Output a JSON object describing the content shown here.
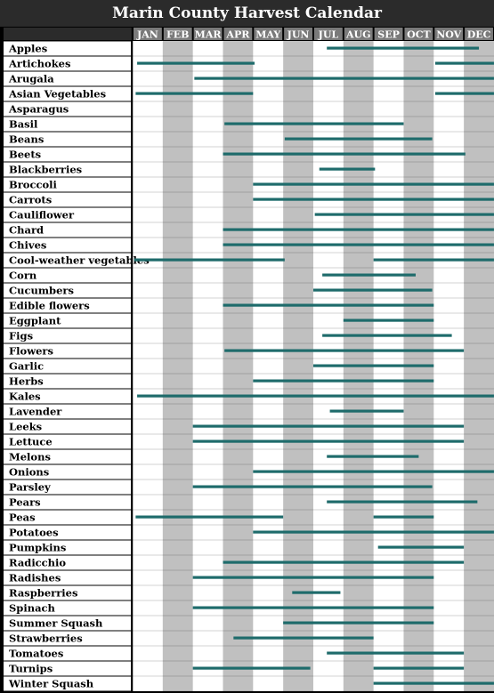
{
  "chart_data": {
    "type": "bar",
    "title": "Marin County Harvest Calendar",
    "xlabel": "",
    "ylabel": "",
    "x_unit": "month (1 = start of JAN, 13 = end of DEC)",
    "xlim": [
      1,
      13
    ],
    "months": [
      "JAN",
      "FEB",
      "MAR",
      "APR",
      "MAY",
      "JUN",
      "JUL",
      "AUG",
      "SEP",
      "OCT",
      "NOV",
      "DEC"
    ],
    "colors": {
      "bar": "#1e6b6b",
      "column_shade": "#c0c0c0",
      "header_bg": "#2b2b2b",
      "month_header_bg": "#7a7a7a"
    },
    "items": [
      {
        "name": "Apples",
        "ranges": [
          [
            7.45,
            12.5
          ]
        ]
      },
      {
        "name": "Artichokes",
        "ranges": [
          [
            1.15,
            5.05
          ],
          [
            11.05,
            13
          ]
        ]
      },
      {
        "name": "Arugala",
        "ranges": [
          [
            3.05,
            13
          ]
        ]
      },
      {
        "name": "Asian Vegetables",
        "ranges": [
          [
            1.1,
            5.0
          ],
          [
            11.05,
            13
          ]
        ]
      },
      {
        "name": "Asparagus",
        "ranges": []
      },
      {
        "name": "Basil",
        "ranges": [
          [
            4.05,
            10.0
          ]
        ]
      },
      {
        "name": "Beans",
        "ranges": [
          [
            6.05,
            10.95
          ]
        ]
      },
      {
        "name": "Beets",
        "ranges": [
          [
            4.0,
            12.05
          ]
        ]
      },
      {
        "name": "Blackberries",
        "ranges": [
          [
            7.2,
            9.05
          ]
        ]
      },
      {
        "name": "Broccoli",
        "ranges": [
          [
            5.0,
            13
          ]
        ]
      },
      {
        "name": "Carrots",
        "ranges": [
          [
            5.0,
            13
          ]
        ]
      },
      {
        "name": "Cauliflower",
        "ranges": [
          [
            7.05,
            13
          ]
        ]
      },
      {
        "name": "Chard",
        "ranges": [
          [
            4.0,
            13
          ]
        ]
      },
      {
        "name": "Chives",
        "ranges": [
          [
            4.0,
            13
          ]
        ]
      },
      {
        "name": "Cool-weather vegetables",
        "ranges": [
          [
            1.05,
            6.05
          ],
          [
            9.0,
            13
          ]
        ]
      },
      {
        "name": "Corn",
        "ranges": [
          [
            7.3,
            10.4
          ]
        ]
      },
      {
        "name": "Cucumbers",
        "ranges": [
          [
            7.0,
            10.95
          ]
        ]
      },
      {
        "name": "Edible flowers",
        "ranges": [
          [
            4.0,
            11.0
          ]
        ]
      },
      {
        "name": "Eggplant",
        "ranges": [
          [
            8.0,
            11.0
          ]
        ]
      },
      {
        "name": "Figs",
        "ranges": [
          [
            7.3,
            11.6
          ]
        ]
      },
      {
        "name": "Flowers",
        "ranges": [
          [
            4.05,
            12.0
          ]
        ]
      },
      {
        "name": "Garlic",
        "ranges": [
          [
            7.0,
            11.0
          ]
        ]
      },
      {
        "name": "Herbs",
        "ranges": [
          [
            5.0,
            11.0
          ]
        ]
      },
      {
        "name": "Kales",
        "ranges": [
          [
            1.15,
            13
          ]
        ]
      },
      {
        "name": "Lavender",
        "ranges": [
          [
            7.55,
            10.0
          ]
        ]
      },
      {
        "name": "Leeks",
        "ranges": [
          [
            3.0,
            12.0
          ]
        ]
      },
      {
        "name": "Lettuce",
        "ranges": [
          [
            3.0,
            12.0
          ]
        ]
      },
      {
        "name": "Melons",
        "ranges": [
          [
            7.45,
            10.5
          ]
        ]
      },
      {
        "name": "Onions",
        "ranges": [
          [
            5.0,
            13
          ]
        ]
      },
      {
        "name": "Parsley",
        "ranges": [
          [
            3.0,
            10.95
          ]
        ]
      },
      {
        "name": "Pears",
        "ranges": [
          [
            7.45,
            12.45
          ]
        ]
      },
      {
        "name": "Peas",
        "ranges": [
          [
            1.1,
            6.0
          ],
          [
            9.0,
            11.0
          ]
        ]
      },
      {
        "name": "Potatoes",
        "ranges": [
          [
            5.0,
            13
          ]
        ]
      },
      {
        "name": "Pumpkins",
        "ranges": [
          [
            9.15,
            12.0
          ]
        ]
      },
      {
        "name": "Radicchio",
        "ranges": [
          [
            4.0,
            12.0
          ]
        ]
      },
      {
        "name": "Radishes",
        "ranges": [
          [
            3.0,
            11.0
          ]
        ]
      },
      {
        "name": "Raspberries",
        "ranges": [
          [
            6.3,
            7.9
          ]
        ]
      },
      {
        "name": "Spinach",
        "ranges": [
          [
            3.0,
            11.0
          ]
        ]
      },
      {
        "name": "Summer Squash",
        "ranges": [
          [
            6.0,
            11.0
          ]
        ]
      },
      {
        "name": "Strawberries",
        "ranges": [
          [
            4.35,
            9.0
          ]
        ]
      },
      {
        "name": "Tomatoes",
        "ranges": [
          [
            7.45,
            12.0
          ]
        ]
      },
      {
        "name": "Turnips",
        "ranges": [
          [
            3.0,
            6.9
          ],
          [
            9.0,
            12.0
          ]
        ]
      },
      {
        "name": "Winter Squash",
        "ranges": [
          [
            9.0,
            13
          ]
        ]
      }
    ]
  }
}
